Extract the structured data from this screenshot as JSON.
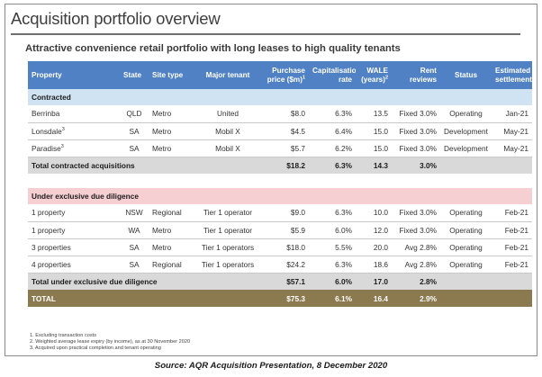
{
  "slide": {
    "title": "Acquisition portfolio overview",
    "subtitle": "Attractive convenience retail portfolio with long leases to high quality tenants"
  },
  "table": {
    "headers": {
      "property": "Property",
      "state": "State",
      "site_type": "Site type",
      "major_tenant": "Major tenant",
      "purchase_price": "Purchase price ($m)",
      "purchase_price_sup": "1",
      "cap_rate": "Capitalisation rate",
      "wale": "WALE (years)",
      "wale_sup": "2",
      "rent_reviews": "Rent reviews",
      "status": "Status",
      "estimated_settlement": "Estimated settlement"
    },
    "contracted": {
      "label": "Contracted",
      "rows": [
        {
          "property": "Berrinba",
          "sup": "",
          "state": "QLD",
          "site_type": "Metro",
          "tenant": "United",
          "price": "$8.0",
          "cap": "6.3%",
          "wale": "13.5",
          "rent": "Fixed 3.0%",
          "status": "Operating",
          "settlement": "Jan-21"
        },
        {
          "property": "Lonsdale",
          "sup": "3",
          "state": "SA",
          "site_type": "Metro",
          "tenant": "Mobil X",
          "price": "$4.5",
          "cap": "6.4%",
          "wale": "15.0",
          "rent": "Fixed 3.0%",
          "status": "Development",
          "settlement": "May-21"
        },
        {
          "property": "Paradise",
          "sup": "3",
          "state": "SA",
          "site_type": "Metro",
          "tenant": "Mobil X",
          "price": "$5.7",
          "cap": "6.2%",
          "wale": "15.0",
          "rent": "Fixed 3.0%",
          "status": "Development",
          "settlement": "May-21"
        }
      ],
      "total": {
        "label": "Total contracted acquisitions",
        "price": "$18.2",
        "cap": "6.3%",
        "wale": "14.3",
        "rent": "3.0%"
      }
    },
    "due_diligence": {
      "label": "Under exclusive due diligence",
      "rows": [
        {
          "property": "1 property",
          "state": "NSW",
          "site_type": "Regional",
          "tenant": "Tier 1 operator",
          "price": "$9.0",
          "cap": "6.3%",
          "wale": "10.0",
          "rent": "Fixed 3.0%",
          "status": "Operating",
          "settlement": "Feb-21"
        },
        {
          "property": "1 property",
          "state": "WA",
          "site_type": "Metro",
          "tenant": "Tier 1 operator",
          "price": "$5.9",
          "cap": "6.0%",
          "wale": "12.0",
          "rent": "Fixed 3.0%",
          "status": "Operating",
          "settlement": "Feb-21"
        },
        {
          "property": "3 properties",
          "state": "SA",
          "site_type": "Metro",
          "tenant": "Tier 1 operators",
          "price": "$18.0",
          "cap": "5.5%",
          "wale": "20.0",
          "rent": "Avg 2.8%",
          "status": "Operating",
          "settlement": "Feb-21"
        },
        {
          "property": "4 properties",
          "state": "SA",
          "site_type": "Regional",
          "tenant": "Tier 1 operators",
          "price": "$24.2",
          "cap": "6.3%",
          "wale": "18.6",
          "rent": "Avg 2.8%",
          "status": "Operating",
          "settlement": "Feb-21"
        }
      ],
      "total": {
        "label": "Total under exclusive due diligence",
        "price": "$57.1",
        "cap": "6.0%",
        "wale": "17.0",
        "rent": "2.8%"
      }
    },
    "grand_total": {
      "label": "TOTAL",
      "price": "$75.3",
      "cap": "6.1%",
      "wale": "16.4",
      "rent": "2.9%"
    }
  },
  "footnotes": [
    "1.   Excluding transaction costs",
    "2.   Weighted average lease expiry (by income), as at 30 November 2020",
    "3.   Acquired upon practical completion and tenant operating"
  ],
  "source": "Source: AQR Acquisition Presentation, 8 December 2020",
  "colors": {
    "header_blue": "#4f81c4",
    "contracted_band": "#cfe3f2",
    "due_diligence_band": "#f6cfd3",
    "total_grey": "#d9d9d9",
    "grand_total_gold": "#8b7a4f"
  }
}
